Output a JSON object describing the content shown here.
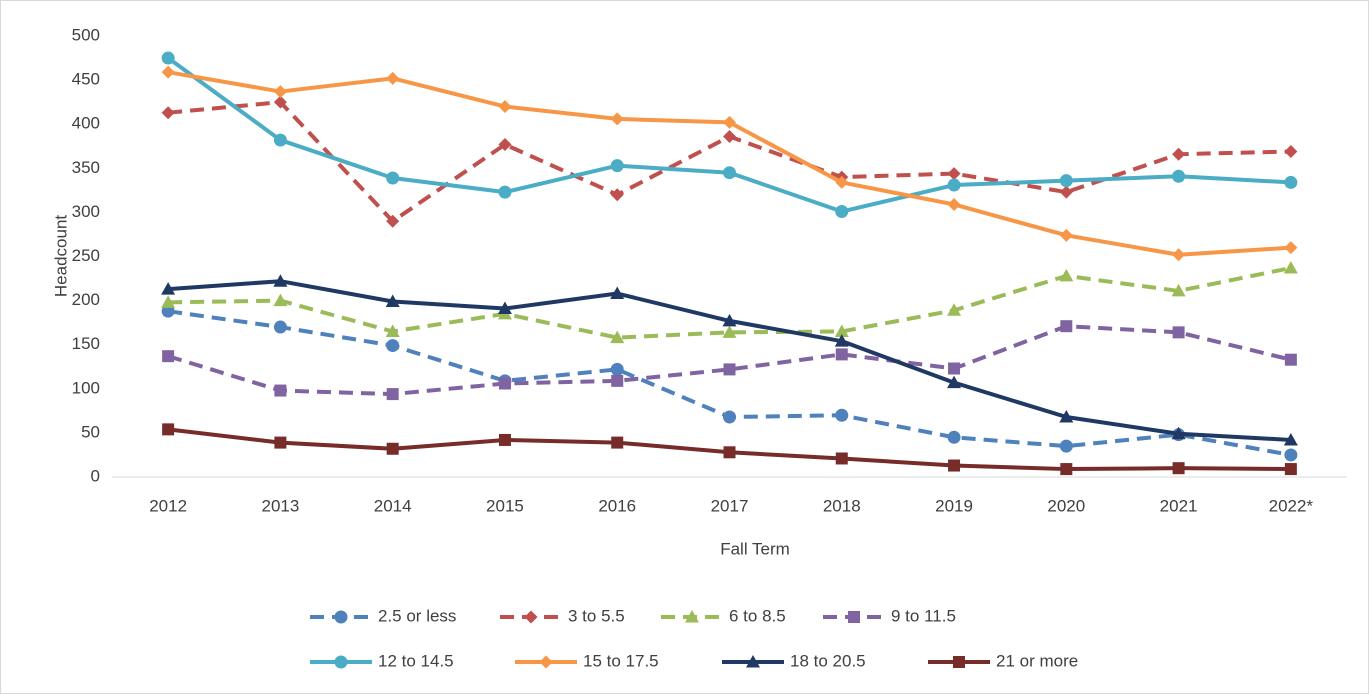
{
  "chart_data": {
    "type": "line",
    "x_label": "Fall Term",
    "y_label": "Headcount",
    "categories": [
      "2012",
      "2013",
      "2014",
      "2015",
      "2016",
      "2017",
      "2018",
      "2019",
      "2020",
      "2021",
      "2022*"
    ],
    "ylim": [
      0,
      500
    ],
    "yticks": [
      0,
      50,
      100,
      150,
      200,
      250,
      300,
      350,
      400,
      450,
      500
    ],
    "grid": false,
    "legend": "bottom",
    "series": [
      {
        "name": "2.5 or less",
        "color": "#4f81bd",
        "dashed": true,
        "marker": "circle",
        "values": [
          188,
          170,
          149,
          109,
          122,
          68,
          70,
          45,
          35,
          48,
          25
        ]
      },
      {
        "name": "3 to 5.5",
        "color": "#c0504d",
        "dashed": true,
        "marker": "diamond",
        "values": [
          413,
          425,
          290,
          377,
          320,
          386,
          340,
          344,
          323,
          366,
          369
        ]
      },
      {
        "name": "6 to 8.5",
        "color": "#9bbb59",
        "dashed": true,
        "marker": "triangle",
        "values": [
          198,
          200,
          165,
          185,
          158,
          164,
          165,
          189,
          228,
          211,
          237
        ]
      },
      {
        "name": "9 to 11.5",
        "color": "#8064a2",
        "dashed": true,
        "marker": "square",
        "values": [
          137,
          98,
          94,
          106,
          109,
          122,
          139,
          123,
          171,
          164,
          133
        ]
      },
      {
        "name": "12 to 14.5",
        "color": "#4bacc6",
        "dashed": false,
        "marker": "circle",
        "values": [
          475,
          382,
          339,
          323,
          353,
          345,
          301,
          331,
          336,
          341,
          334
        ]
      },
      {
        "name": "15 to 17.5",
        "color": "#f79646",
        "dashed": false,
        "marker": "diamond",
        "values": [
          459,
          437,
          452,
          420,
          406,
          402,
          334,
          309,
          274,
          252,
          260
        ]
      },
      {
        "name": "18 to 20.5",
        "color": "#1f3864",
        "dashed": false,
        "marker": "triangle",
        "values": [
          213,
          222,
          199,
          191,
          208,
          177,
          154,
          107,
          68,
          49,
          42
        ]
      },
      {
        "name": "21 or more",
        "color": "#772c2a",
        "dashed": false,
        "marker": "square",
        "values": [
          54,
          39,
          32,
          42,
          39,
          28,
          21,
          13,
          9,
          10,
          9
        ]
      }
    ]
  }
}
